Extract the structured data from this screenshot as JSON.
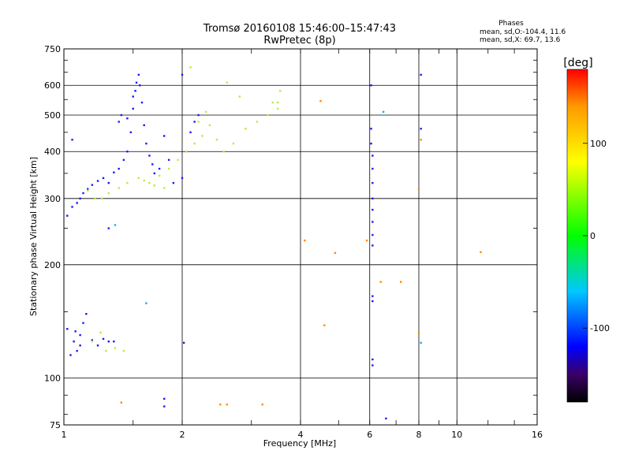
{
  "chart_data": {
    "type": "scatter",
    "title": "Tromsø 20160108 15:46:00–15:47:43",
    "subtitle": "RwPretec (8p)",
    "stats_title": "Phases",
    "stats_line_o": "mean, sd,O:-104.4, 11.6",
    "stats_line_x": "mean, sd,X:  69.7, 13.6",
    "xlabel": "Frequency [MHz]",
    "ylabel": "Stationary phase Virtual Height [km]",
    "x_scale": "log",
    "y_scale": "log",
    "xlim": [
      1,
      16
    ],
    "ylim": [
      75,
      750
    ],
    "x_ticks": [
      1,
      2,
      4,
      6,
      8,
      10,
      16
    ],
    "x_tick_labels": [
      "1",
      "2",
      "4",
      "6",
      "8",
      "10",
      "16"
    ],
    "y_ticks": [
      75,
      100,
      200,
      300,
      400,
      500,
      600,
      750
    ],
    "y_tick_labels": [
      "75",
      "100",
      "200",
      "300",
      "400",
      "500",
      "600",
      "750"
    ],
    "grid": true,
    "colorbar": {
      "label": "[deg]",
      "range": [
        -180,
        180
      ],
      "ticks": [
        100,
        0,
        -100
      ],
      "tick_labels": [
        "100",
        "0",
        "-100"
      ],
      "stops": [
        {
          "v": -180,
          "color": "#000000"
        },
        {
          "v": -150,
          "color": "#3a0068"
        },
        {
          "v": -120,
          "color": "#0000ff"
        },
        {
          "v": -60,
          "color": "#00c8ff"
        },
        {
          "v": 0,
          "color": "#00ff00"
        },
        {
          "v": 80,
          "color": "#ffff00"
        },
        {
          "v": 140,
          "color": "#ff9900"
        },
        {
          "v": 180,
          "color": "#ff0000"
        }
      ]
    },
    "series": [
      {
        "mode": "O",
        "phase_deg": -110,
        "color": "#1a1aff",
        "points": [
          [
            1.02,
            270
          ],
          [
            1.05,
            285
          ],
          [
            1.08,
            292
          ],
          [
            1.1,
            300
          ],
          [
            1.12,
            310
          ],
          [
            1.15,
            318
          ],
          [
            1.18,
            326
          ],
          [
            1.22,
            334
          ],
          [
            1.26,
            340
          ],
          [
            1.3,
            330
          ],
          [
            1.34,
            352
          ],
          [
            1.38,
            360
          ],
          [
            1.42,
            380
          ],
          [
            1.45,
            400
          ],
          [
            1.48,
            450
          ],
          [
            1.5,
            520
          ],
          [
            1.52,
            580
          ],
          [
            1.55,
            640
          ],
          [
            1.56,
            600
          ],
          [
            1.58,
            540
          ],
          [
            1.6,
            470
          ],
          [
            1.62,
            420
          ],
          [
            1.65,
            390
          ],
          [
            1.68,
            370
          ],
          [
            1.7,
            350
          ],
          [
            1.75,
            360
          ],
          [
            1.8,
            440
          ],
          [
            1.85,
            380
          ],
          [
            1.9,
            330
          ],
          [
            2.0,
            340
          ],
          [
            2.05,
            400
          ],
          [
            2.1,
            450
          ],
          [
            2.15,
            480
          ],
          [
            2.2,
            500
          ],
          [
            1.05,
            430
          ],
          [
            1.38,
            480
          ],
          [
            1.4,
            500
          ],
          [
            1.45,
            490
          ],
          [
            1.5,
            560
          ],
          [
            1.53,
            610
          ],
          [
            1.06,
            125
          ],
          [
            1.08,
            118
          ],
          [
            1.1,
            130
          ],
          [
            1.12,
            140
          ],
          [
            1.14,
            148
          ],
          [
            1.18,
            126
          ],
          [
            1.22,
            122
          ],
          [
            1.26,
            127
          ],
          [
            1.3,
            125
          ],
          [
            1.34,
            125
          ],
          [
            1.04,
            115
          ],
          [
            1.02,
            135
          ],
          [
            1.1,
            122
          ],
          [
            1.07,
            133
          ],
          [
            1.8,
            84
          ],
          [
            1.8,
            88
          ],
          [
            2.02,
            124
          ],
          [
            2.0,
            640
          ],
          [
            8.1,
            640
          ],
          [
            8.1,
            460
          ],
          [
            6.6,
            78
          ],
          [
            6.05,
            600
          ],
          [
            6.05,
            460
          ],
          [
            6.05,
            420
          ],
          [
            6.1,
            390
          ],
          [
            6.1,
            360
          ],
          [
            6.1,
            330
          ],
          [
            6.1,
            300
          ],
          [
            6.1,
            280
          ],
          [
            6.1,
            260
          ],
          [
            6.1,
            240
          ],
          [
            6.1,
            225
          ],
          [
            6.1,
            165
          ],
          [
            6.1,
            160
          ],
          [
            6.1,
            112
          ],
          [
            6.1,
            108
          ],
          [
            1.3,
            250
          ]
        ]
      },
      {
        "mode": "X",
        "phase_deg": 70,
        "color": "#b4f03c",
        "points": [
          [
            1.25,
            300
          ],
          [
            1.3,
            310
          ],
          [
            1.38,
            320
          ],
          [
            1.45,
            330
          ],
          [
            1.55,
            340
          ],
          [
            1.65,
            330
          ],
          [
            1.75,
            345
          ],
          [
            1.85,
            360
          ],
          [
            1.95,
            380
          ],
          [
            2.05,
            400
          ],
          [
            2.15,
            420
          ],
          [
            2.25,
            440
          ],
          [
            2.35,
            470
          ],
          [
            2.45,
            430
          ],
          [
            2.55,
            400
          ],
          [
            2.7,
            420
          ],
          [
            2.9,
            460
          ],
          [
            3.1,
            480
          ],
          [
            3.3,
            500
          ],
          [
            3.5,
            540
          ],
          [
            3.55,
            580
          ],
          [
            3.5,
            520
          ],
          [
            3.4,
            540
          ],
          [
            2.2,
            480
          ],
          [
            2.3,
            510
          ],
          [
            1.7,
            325
          ],
          [
            1.6,
            335
          ],
          [
            1.8,
            320
          ],
          [
            1.2,
            300
          ],
          [
            1.15,
            315
          ],
          [
            1.18,
            125
          ],
          [
            1.24,
            132
          ],
          [
            1.28,
            118
          ],
          [
            1.35,
            120
          ],
          [
            1.42,
            118
          ],
          [
            2.6,
            610
          ],
          [
            2.8,
            560
          ],
          [
            2.1,
            670
          ]
        ]
      },
      {
        "mode": "other",
        "phase_deg": 140,
        "color": "#ff8a00",
        "points": [
          [
            4.5,
            545
          ],
          [
            4.6,
            138
          ],
          [
            4.9,
            215
          ],
          [
            4.1,
            232
          ],
          [
            5.9,
            232
          ],
          [
            8.0,
            132
          ],
          [
            8.0,
            318
          ],
          [
            8.1,
            430
          ],
          [
            11.5,
            216
          ],
          [
            1.4,
            86
          ],
          [
            2.5,
            85
          ],
          [
            2.6,
            85
          ],
          [
            3.2,
            85
          ],
          [
            6.4,
            180
          ],
          [
            7.2,
            180
          ]
        ]
      },
      {
        "mode": "cyan",
        "phase_deg": -50,
        "color": "#00b4ff",
        "points": [
          [
            6.5,
            510
          ],
          [
            8.1,
            124
          ],
          [
            1.62,
            158
          ],
          [
            1.35,
            255
          ]
        ]
      }
    ]
  }
}
